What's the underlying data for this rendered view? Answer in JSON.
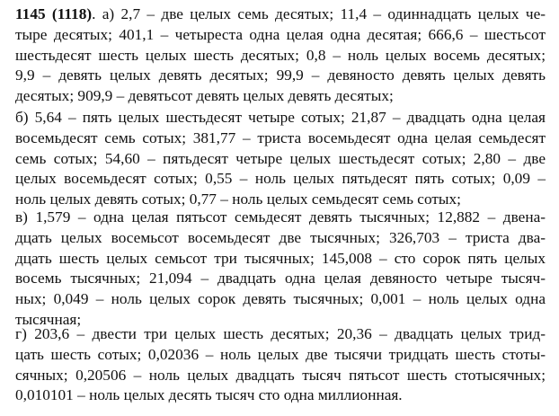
{
  "problem": {
    "number": "1145 (1118)",
    "paragraphs": [
      {
        "label": "a",
        "lines": [
          ". а) 2,7 – две целых семь десятых; 11,4 – одиннадцать целых че-",
          "тыре десятых; 401,1 – четыреста одна целая одна десятая; 666,6 – шестьсот",
          "шестьдесят шесть целых шесть десятых; 0,8 – ноль целых восемь десятых;",
          "9,9 – девять целых девять десятых; 99,9 – девяносто девять целых девять",
          "десятых; 909,9 – девятьсот девять целых девять десятых;"
        ]
      },
      {
        "label": "b",
        "lines": [
          "б) 5,64 – пять целых шестьдесят четыре сотых; 21,87 – двадцать одна целая",
          "восемьдесят семь сотых; 381,77 – триста восемьдесят одна целая семьдесят",
          "семь сотых; 54,60 – пятьдесят четыре целых шестьдесят сотых; 2,80 – две",
          "целых восемьдесят сотых; 0,55 – ноль целых пятьдесят пять сотых; 0,09 –",
          "ноль целых девять сотых; 0,77 – ноль целых семьдесят семь сотых;"
        ]
      },
      {
        "label": "c",
        "lines": [
          "в) 1,579 – одна целая пятьсот семьдесят девять тысячных; 12,882 – двена-",
          "дцать целых восемьсот восемьдесят две тысячных; 326,703 – триста два-",
          "дцать шесть целых семьсот три тысячных; 145,008 – сто сорок пять целых",
          "восемь тысячных; 21,094 – двадцать одна целая девяносто четыре тысяч-",
          "ных; 0,049 – ноль целых сорок девять тысячных; 0,001 – ноль целых одна",
          "тысячная;"
        ]
      },
      {
        "label": "d",
        "lines": [
          "г) 203,6 – двести три целых шесть десятых; 20,36 – двадцать целых трид-",
          "цать шесть сотых; 0,02036 – ноль целых две тысячи тридцать шесть стоты-",
          "сячных; 0,20506 – ноль целых двадцать тысяч пятьсот шесть стотысячных;",
          "0,010101 – ноль целых десять тысяч сто одна миллионная."
        ]
      }
    ]
  }
}
